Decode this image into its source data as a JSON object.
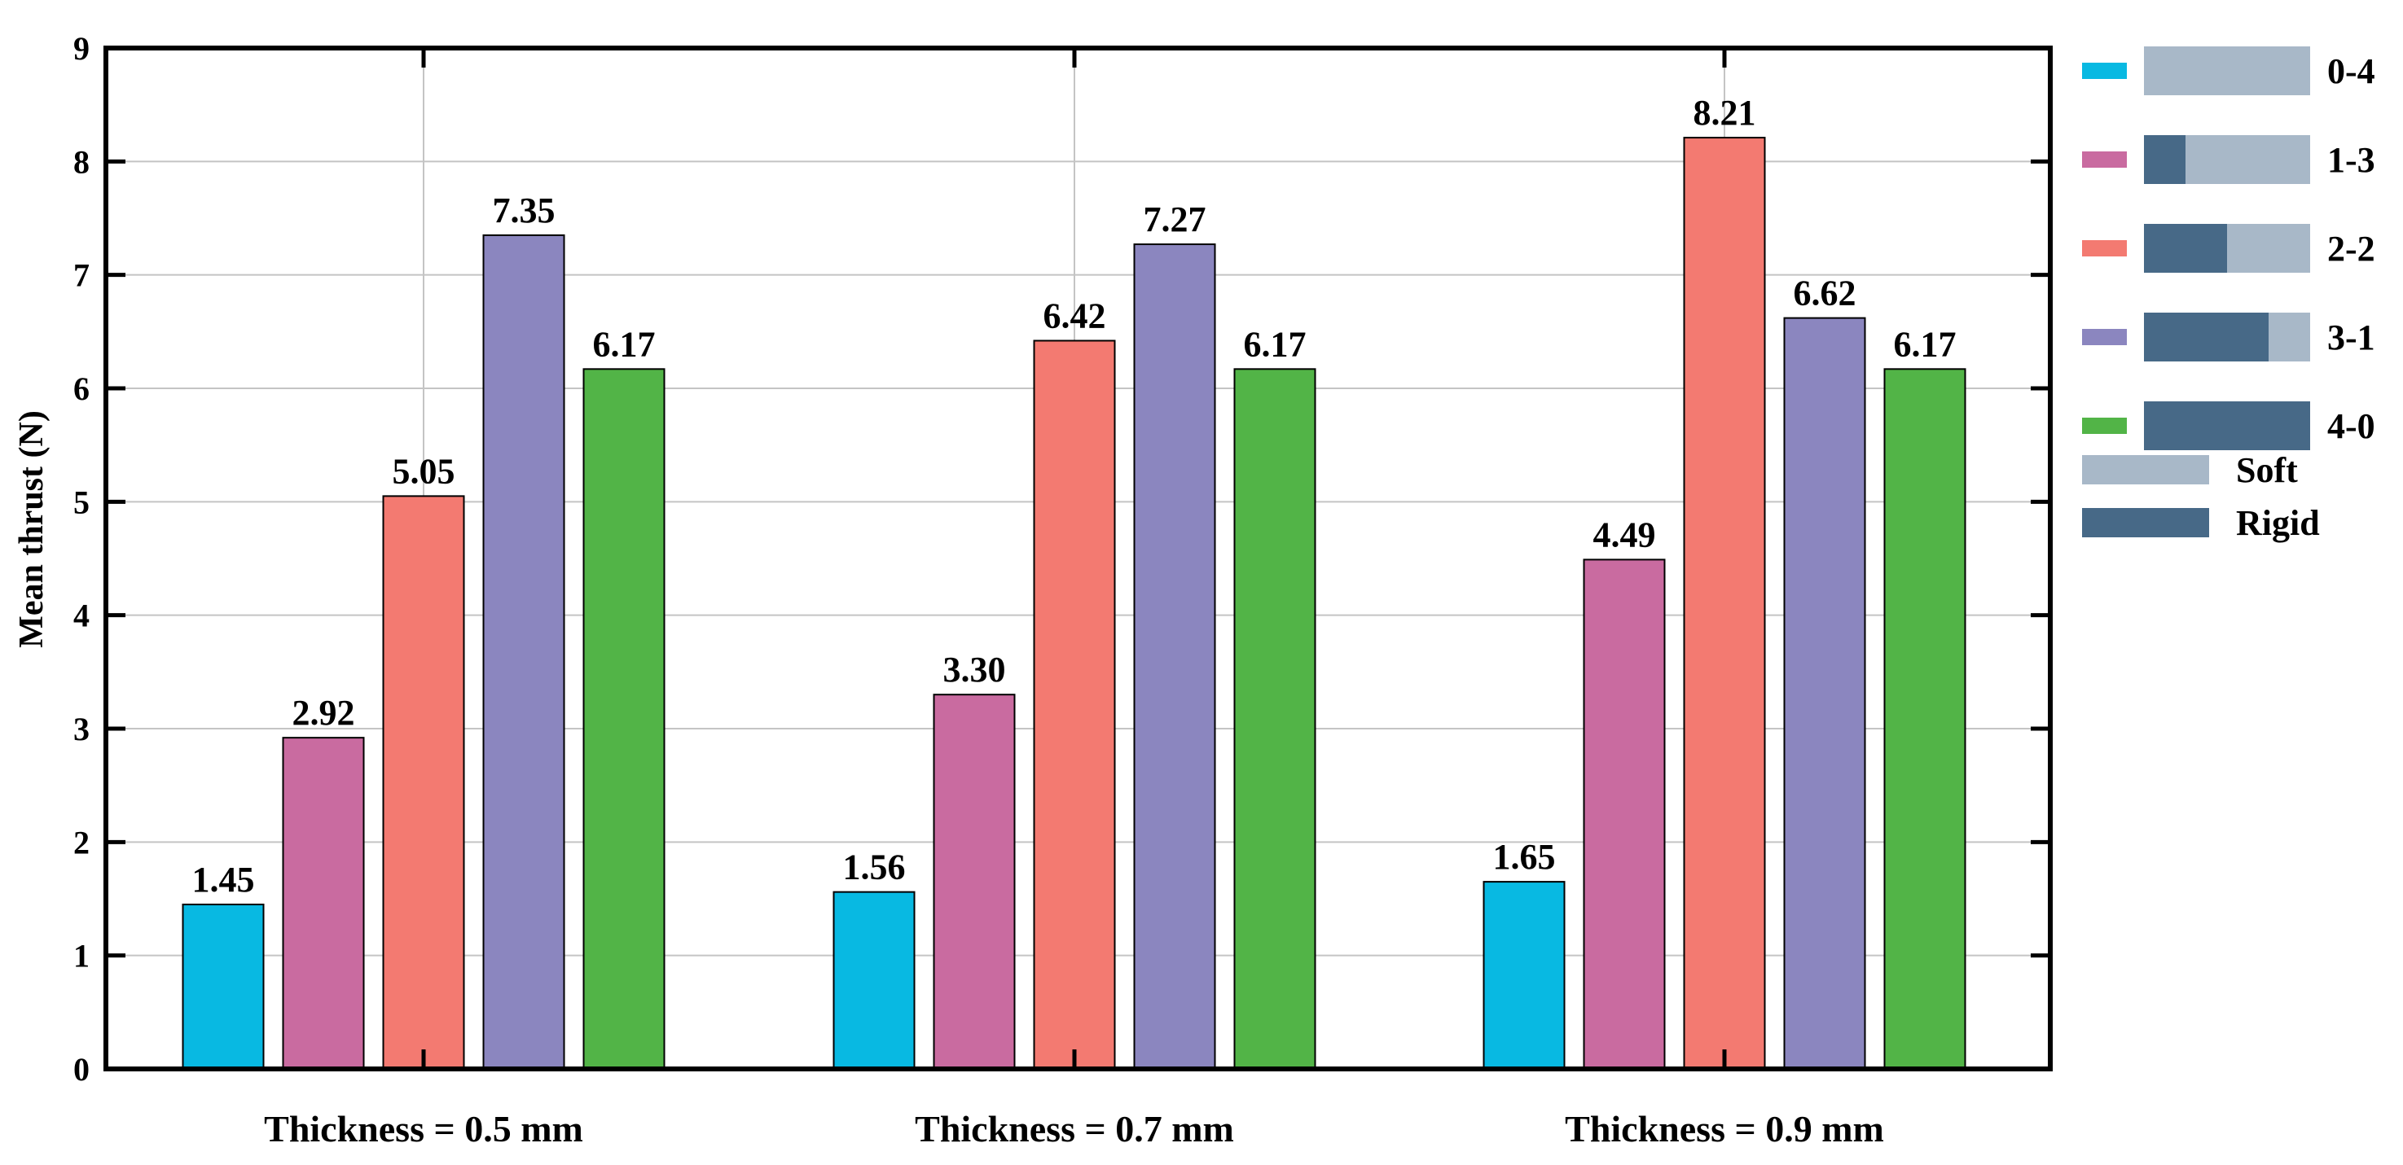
{
  "chart_data": {
    "type": "bar",
    "title": "",
    "xlabel": "",
    "ylabel": "Mean thrust (N)",
    "ylim": [
      0,
      9
    ],
    "yticks": [
      "0",
      "1",
      "2",
      "3",
      "4",
      "5",
      "6",
      "7",
      "8",
      "9"
    ],
    "grid": true,
    "legend_position": "right",
    "categories": [
      "Thickness = 0.5 mm",
      "Thickness = 0.7 mm",
      "Thickness = 0.9 mm"
    ],
    "series": [
      {
        "name": "0-4",
        "color": "#08b9e2",
        "rigid_fraction": 0.0,
        "values": [
          1.45,
          1.56,
          1.65
        ],
        "labels": [
          "1.45",
          "1.56",
          "1.65"
        ]
      },
      {
        "name": "1-3",
        "color": "#c96ba0",
        "rigid_fraction": 0.25,
        "values": [
          2.92,
          3.3,
          4.49
        ],
        "labels": [
          "2.92",
          "3.30",
          "4.49"
        ]
      },
      {
        "name": "2-2",
        "color": "#f37a71",
        "rigid_fraction": 0.5,
        "values": [
          5.05,
          6.42,
          8.21
        ],
        "labels": [
          "5.05",
          "6.42",
          "8.21"
        ]
      },
      {
        "name": "3-1",
        "color": "#8b86bf",
        "rigid_fraction": 0.75,
        "values": [
          7.35,
          7.27,
          6.62
        ],
        "labels": [
          "7.35",
          "7.27",
          "6.62"
        ]
      },
      {
        "name": "4-0",
        "color": "#52b447",
        "rigid_fraction": 1.0,
        "values": [
          6.17,
          6.17,
          6.17
        ],
        "labels": [
          "6.17",
          "6.17",
          "6.17"
        ]
      }
    ],
    "material_legend": [
      {
        "name": "Soft",
        "color": "#a8b8c8"
      },
      {
        "name": "Rigid",
        "color": "#476987"
      }
    ]
  }
}
